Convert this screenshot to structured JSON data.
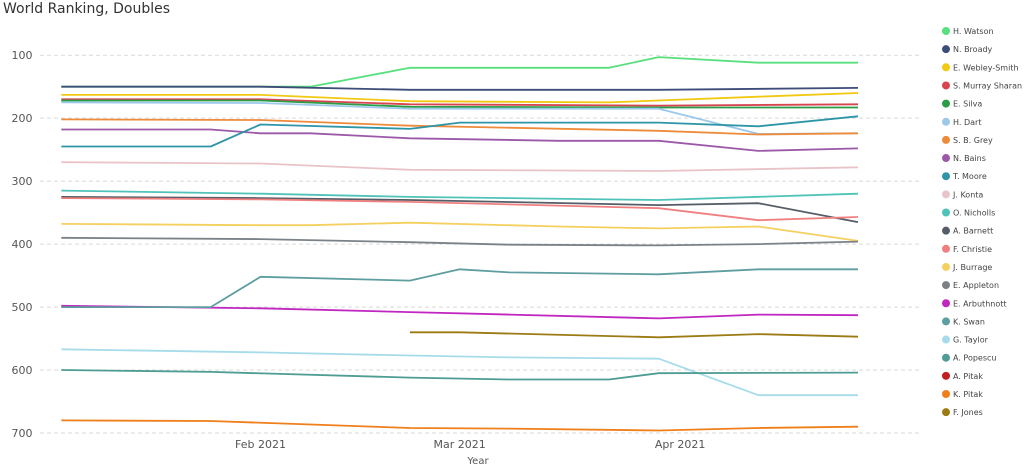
{
  "chart_data": {
    "type": "line",
    "title": "World Ranking, Doubles",
    "xlabel": "Year",
    "ylabel": "",
    "x_domain": [
      "2021-01-01",
      "2021-05-05"
    ],
    "x_ticks": [
      {
        "date": "2021-02-01",
        "label": "Feb 2021"
      },
      {
        "date": "2021-03-01",
        "label": "Mar 2021"
      },
      {
        "date": "2021-04-01",
        "label": "Apr 2021"
      }
    ],
    "y_reversed": true,
    "ylim": [
      700,
      60
    ],
    "y_ticks": [
      100,
      200,
      300,
      400,
      500,
      600,
      700
    ],
    "grid": "horizontal dashed",
    "legend_position": "right",
    "series": [
      {
        "name": "H. Watson",
        "color": "#59e07e",
        "points": [
          [
            "2021-01-04",
            150
          ],
          [
            "2021-01-18",
            150
          ],
          [
            "2021-02-01",
            150
          ],
          [
            "2021-02-08",
            150
          ],
          [
            "2021-02-22",
            120
          ],
          [
            "2021-03-08",
            120
          ],
          [
            "2021-03-15",
            120
          ],
          [
            "2021-03-22",
            120
          ],
          [
            "2021-03-29",
            103
          ],
          [
            "2021-04-12",
            112
          ],
          [
            "2021-04-26",
            112
          ]
        ]
      },
      {
        "name": "N. Broady",
        "color": "#3e4c7a",
        "points": [
          [
            "2021-01-04",
            150
          ],
          [
            "2021-02-01",
            150
          ],
          [
            "2021-02-22",
            155
          ],
          [
            "2021-03-29",
            155
          ],
          [
            "2021-04-26",
            152
          ]
        ]
      },
      {
        "name": "E. Webley-Smith",
        "color": "#f2c811",
        "points": [
          [
            "2021-01-04",
            163
          ],
          [
            "2021-02-01",
            163
          ],
          [
            "2021-02-22",
            173
          ],
          [
            "2021-03-22",
            175
          ],
          [
            "2021-04-12",
            166
          ],
          [
            "2021-04-26",
            160
          ]
        ]
      },
      {
        "name": "S. Murray Sharan",
        "color": "#d64550",
        "points": [
          [
            "2021-01-04",
            170
          ],
          [
            "2021-02-01",
            170
          ],
          [
            "2021-02-22",
            178
          ],
          [
            "2021-03-29",
            180
          ],
          [
            "2021-04-26",
            178
          ]
        ]
      },
      {
        "name": "E. Silva",
        "color": "#2a9d46",
        "points": [
          [
            "2021-01-04",
            172
          ],
          [
            "2021-02-01",
            172
          ],
          [
            "2021-02-22",
            182
          ],
          [
            "2021-03-29",
            183
          ],
          [
            "2021-04-26",
            183
          ]
        ]
      },
      {
        "name": "H. Dart",
        "color": "#9cc9ea",
        "points": [
          [
            "2021-01-04",
            175
          ],
          [
            "2021-02-01",
            176
          ],
          [
            "2021-02-22",
            185
          ],
          [
            "2021-03-29",
            185
          ],
          [
            "2021-04-12",
            225
          ],
          [
            "2021-04-26",
            224
          ]
        ]
      },
      {
        "name": "S. B. Grey",
        "color": "#ee8b3a",
        "points": [
          [
            "2021-01-04",
            202
          ],
          [
            "2021-02-01",
            203
          ],
          [
            "2021-02-22",
            212
          ],
          [
            "2021-03-29",
            220
          ],
          [
            "2021-04-12",
            226
          ],
          [
            "2021-04-26",
            224
          ]
        ]
      },
      {
        "name": "N. Bains",
        "color": "#9b59a8",
        "points": [
          [
            "2021-01-04",
            218
          ],
          [
            "2021-01-25",
            218
          ],
          [
            "2021-02-01",
            224
          ],
          [
            "2021-02-08",
            224
          ],
          [
            "2021-02-22",
            232
          ],
          [
            "2021-03-15",
            236
          ],
          [
            "2021-03-29",
            236
          ],
          [
            "2021-04-12",
            252
          ],
          [
            "2021-04-26",
            248
          ]
        ]
      },
      {
        "name": "T. Moore",
        "color": "#2e95a8",
        "points": [
          [
            "2021-01-04",
            245
          ],
          [
            "2021-01-25",
            245
          ],
          [
            "2021-02-01",
            210
          ],
          [
            "2021-02-22",
            217
          ],
          [
            "2021-03-01",
            207
          ],
          [
            "2021-03-29",
            207
          ],
          [
            "2021-04-12",
            213
          ],
          [
            "2021-04-26",
            197
          ]
        ]
      },
      {
        "name": "J. Konta",
        "color": "#e8c4c9",
        "points": [
          [
            "2021-01-04",
            270
          ],
          [
            "2021-02-01",
            272
          ],
          [
            "2021-02-22",
            282
          ],
          [
            "2021-03-29",
            284
          ],
          [
            "2021-04-26",
            278
          ]
        ]
      },
      {
        "name": "O. Nicholls",
        "color": "#4fc3b8",
        "points": [
          [
            "2021-01-04",
            315
          ],
          [
            "2021-02-01",
            320
          ],
          [
            "2021-02-22",
            325
          ],
          [
            "2021-03-29",
            330
          ],
          [
            "2021-04-26",
            320
          ]
        ]
      },
      {
        "name": "A. Barnett",
        "color": "#555d66",
        "points": [
          [
            "2021-01-04",
            325
          ],
          [
            "2021-02-01",
            327
          ],
          [
            "2021-02-22",
            330
          ],
          [
            "2021-03-29",
            338
          ],
          [
            "2021-04-12",
            335
          ],
          [
            "2021-04-26",
            365
          ]
        ]
      },
      {
        "name": "F. Christie",
        "color": "#f08080",
        "points": [
          [
            "2021-01-04",
            327
          ],
          [
            "2021-02-01",
            329
          ],
          [
            "2021-02-22",
            333
          ],
          [
            "2021-03-29",
            343
          ],
          [
            "2021-04-12",
            362
          ],
          [
            "2021-04-26",
            357
          ]
        ]
      },
      {
        "name": "J. Burrage",
        "color": "#f5d05e",
        "points": [
          [
            "2021-01-04",
            368
          ],
          [
            "2021-02-01",
            370
          ],
          [
            "2021-02-08",
            370
          ],
          [
            "2021-02-22",
            366
          ],
          [
            "2021-03-15",
            372
          ],
          [
            "2021-03-29",
            375
          ],
          [
            "2021-04-12",
            372
          ],
          [
            "2021-04-26",
            395
          ]
        ]
      },
      {
        "name": "E. Appleton",
        "color": "#7a8288",
        "points": [
          [
            "2021-01-04",
            390
          ],
          [
            "2021-02-01",
            392
          ],
          [
            "2021-02-22",
            397
          ],
          [
            "2021-03-08",
            401
          ],
          [
            "2021-03-29",
            402
          ],
          [
            "2021-04-12",
            400
          ],
          [
            "2021-04-26",
            396
          ]
        ]
      },
      {
        "name": "E. Arbuthnott",
        "color": "#c026c0",
        "points": [
          [
            "2021-01-04",
            498
          ],
          [
            "2021-02-01",
            502
          ],
          [
            "2021-02-22",
            508
          ],
          [
            "2021-03-08",
            512
          ],
          [
            "2021-03-29",
            518
          ],
          [
            "2021-04-12",
            512
          ],
          [
            "2021-04-26",
            513
          ]
        ]
      },
      {
        "name": "K. Swan",
        "color": "#5f9ea0",
        "points": [
          [
            "2021-01-04",
            500
          ],
          [
            "2021-01-25",
            500
          ],
          [
            "2021-02-01",
            452
          ],
          [
            "2021-02-22",
            458
          ],
          [
            "2021-03-01",
            440
          ],
          [
            "2021-03-08",
            445
          ],
          [
            "2021-03-29",
            448
          ],
          [
            "2021-04-12",
            440
          ],
          [
            "2021-04-26",
            440
          ]
        ]
      },
      {
        "name": "G. Taylor",
        "color": "#a6dcea",
        "points": [
          [
            "2021-01-04",
            567
          ],
          [
            "2021-02-01",
            572
          ],
          [
            "2021-02-22",
            577
          ],
          [
            "2021-03-08",
            580
          ],
          [
            "2021-03-29",
            582
          ],
          [
            "2021-04-12",
            640
          ],
          [
            "2021-04-26",
            640
          ]
        ]
      },
      {
        "name": "A. Popescu",
        "color": "#4e9c94",
        "points": [
          [
            "2021-01-04",
            600
          ],
          [
            "2021-01-25",
            603
          ],
          [
            "2021-02-22",
            612
          ],
          [
            "2021-03-08",
            615
          ],
          [
            "2021-03-22",
            615
          ],
          [
            "2021-03-29",
            605
          ],
          [
            "2021-04-26",
            604
          ]
        ]
      },
      {
        "name": "A. Pitak",
        "color": "#c21f1f",
        "points": []
      },
      {
        "name": "K. Pitak",
        "color": "#ef7f1a",
        "points": [
          [
            "2021-01-04",
            680
          ],
          [
            "2021-01-25",
            681
          ],
          [
            "2021-02-22",
            692
          ],
          [
            "2021-03-08",
            693
          ],
          [
            "2021-03-29",
            696
          ],
          [
            "2021-04-12",
            692
          ],
          [
            "2021-04-26",
            690
          ]
        ]
      },
      {
        "name": "F. Jones",
        "color": "#9c7a14",
        "points": [
          [
            "2021-02-22",
            540
          ],
          [
            "2021-03-01",
            540
          ],
          [
            "2021-03-29",
            548
          ],
          [
            "2021-04-12",
            543
          ],
          [
            "2021-04-26",
            547
          ]
        ]
      }
    ]
  }
}
